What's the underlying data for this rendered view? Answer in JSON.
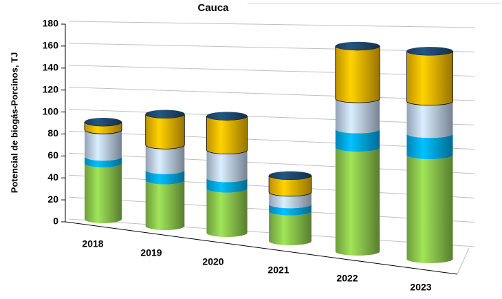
{
  "chart_data": {
    "type": "bar3d",
    "title": "Cauca",
    "y_label": "Potencial  de biogás-Porcinos, TJ",
    "categories": [
      "2018",
      "2019",
      "2020",
      "2021",
      "2022",
      "2023"
    ],
    "stacked": true,
    "series": [
      {
        "color": "#92d050",
        "values": [
          50,
          40,
          38,
          25,
          85,
          83
        ]
      },
      {
        "color": "#00b0f0",
        "values": [
          6,
          9,
          9,
          6,
          15,
          17
        ]
      },
      {
        "color": "#c5d9f1",
        "values": [
          24,
          22,
          24,
          10,
          25,
          26
        ]
      },
      {
        "color": "#ffc000",
        "values": [
          7,
          27,
          29,
          14,
          43,
          40
        ]
      }
    ],
    "cap_color": "#1f4e79",
    "ylim": [
      0,
      180
    ],
    "yticks": [
      0,
      20,
      40,
      60,
      80,
      100,
      120,
      140,
      160,
      180
    ],
    "grid": true
  }
}
